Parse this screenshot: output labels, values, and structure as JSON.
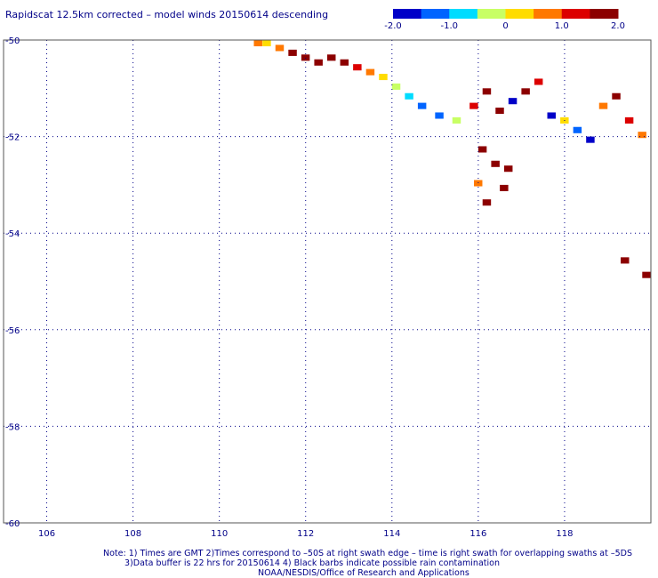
{
  "title": "Rapidscat 12.5km corrected – model winds 20150614 descending",
  "colorbar": {
    "ticks": [
      "-2.0",
      "-1.0",
      "0",
      "1.0",
      "2.0"
    ],
    "tick_values": [
      -2.0,
      -1.0,
      0,
      1.0,
      2.0
    ],
    "colors": [
      "#0000c8",
      "#0064ff",
      "#00dcff",
      "#c8ff64",
      "#ffdc00",
      "#ff7800",
      "#dc0000",
      "#8c0000"
    ]
  },
  "chart_data": {
    "type": "heatmap",
    "xlim": [
      105,
      120
    ],
    "ylim": [
      -60,
      -50
    ],
    "x_ticks": [
      106,
      108,
      110,
      112,
      114,
      116,
      118
    ],
    "x_tick_labels": [
      "106",
      "108",
      "110",
      "112",
      "114",
      "116",
      "118"
    ],
    "y_ticks": [
      -50,
      -52,
      -54,
      -56,
      -58,
      -60
    ],
    "y_tick_labels": [
      "-50",
      "-52",
      "-54",
      "-56",
      "-58",
      "-60"
    ],
    "grid": true,
    "value_range": [
      -2.0,
      2.0
    ],
    "cell_size_deg": [
      0.15,
      0.1
    ],
    "cells_approx": [
      [
        110.8,
        -50.0,
        0.5
      ],
      [
        111.0,
        -50.0,
        0.3
      ],
      [
        111.3,
        -50.1,
        0.9
      ],
      [
        111.6,
        -50.2,
        1.6
      ],
      [
        111.9,
        -50.3,
        1.8
      ],
      [
        112.2,
        -50.4,
        2.0
      ],
      [
        112.5,
        -50.3,
        1.9
      ],
      [
        112.8,
        -50.4,
        1.7
      ],
      [
        113.1,
        -50.5,
        1.2
      ],
      [
        113.4,
        -50.6,
        0.6
      ],
      [
        113.7,
        -50.7,
        0.2
      ],
      [
        114.0,
        -50.9,
        -0.4
      ],
      [
        114.3,
        -51.1,
        -0.8
      ],
      [
        114.6,
        -51.3,
        -1.1
      ],
      [
        115.0,
        -51.5,
        -1.5
      ],
      [
        115.4,
        -51.6,
        -0.5
      ],
      [
        115.8,
        -51.3,
        1.4
      ],
      [
        116.1,
        -51.0,
        2.0
      ],
      [
        116.4,
        -51.4,
        2.0
      ],
      [
        116.7,
        -51.2,
        -2.0
      ],
      [
        117.0,
        -51.0,
        2.0
      ],
      [
        117.3,
        -50.8,
        1.1
      ],
      [
        117.6,
        -51.5,
        -1.8
      ],
      [
        117.9,
        -51.6,
        0.4
      ],
      [
        118.2,
        -51.8,
        -1.2
      ],
      [
        118.5,
        -52.0,
        -1.6
      ],
      [
        118.8,
        -51.3,
        0.9
      ],
      [
        119.1,
        -51.1,
        2.0
      ],
      [
        119.4,
        -51.6,
        1.3
      ],
      [
        119.7,
        -51.9,
        0.6
      ],
      [
        116.0,
        -52.2,
        2.0
      ],
      [
        116.3,
        -52.5,
        2.0
      ],
      [
        116.6,
        -52.6,
        2.0
      ],
      [
        115.9,
        -52.9,
        0.8
      ],
      [
        116.1,
        -53.3,
        1.5
      ],
      [
        116.5,
        -53.0,
        2.0
      ],
      [
        119.3,
        -54.5,
        2.0
      ],
      [
        119.8,
        -54.8,
        2.0
      ]
    ]
  },
  "notes": [
    "Note: 1) Times are GMT 2)Times correspond to –50S at right swath edge – time is right swath for overlapping swaths at –5DS",
    "3)Data buffer is 22 hrs for 20150614 4) Black barbs indicate possible rain contamination",
    "NOAA/NESDIS/Office of Research and Applications"
  ]
}
